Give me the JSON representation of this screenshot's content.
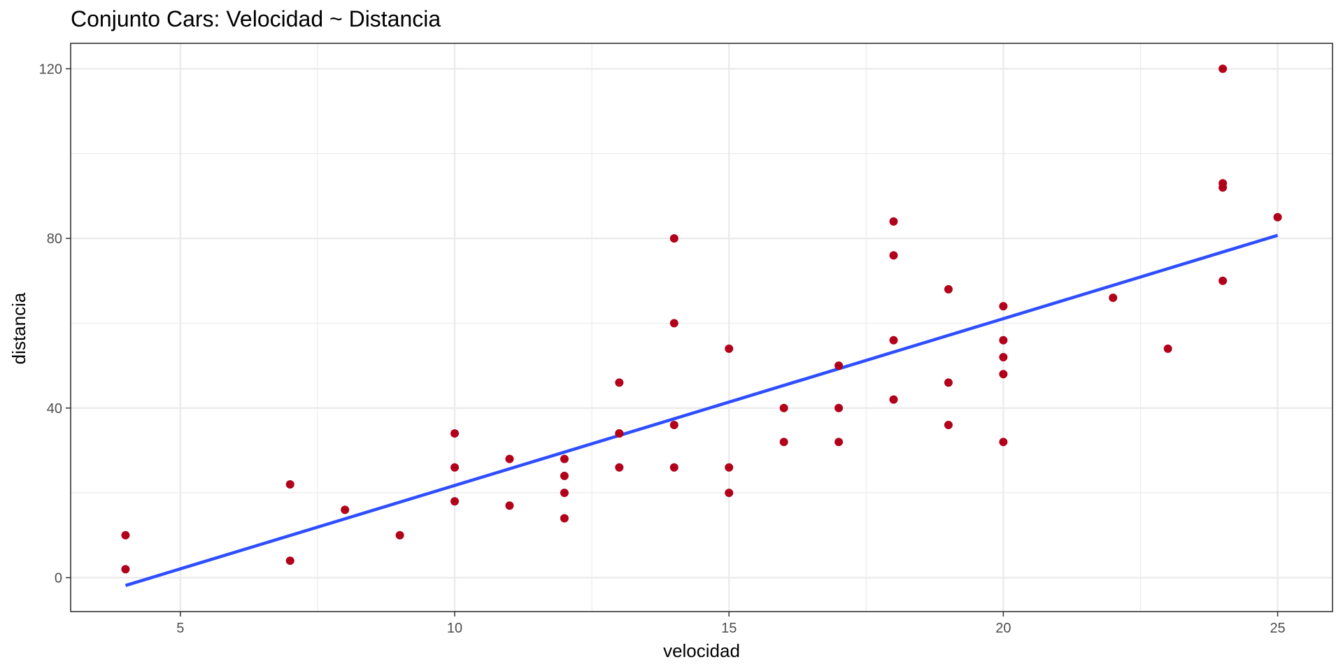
{
  "chart_data": {
    "type": "scatter",
    "title": "Conjunto Cars: Velocidad ~ Distancia",
    "xlabel": "velocidad",
    "ylabel": "distancia",
    "xlim": [
      3,
      26
    ],
    "ylim": [
      -8,
      126
    ],
    "x_ticks": [
      5,
      10,
      15,
      20,
      25
    ],
    "y_ticks": [
      0,
      40,
      80,
      120
    ],
    "x_tick_labels": [
      "5",
      "10",
      "15",
      "20",
      "25"
    ],
    "y_tick_labels": [
      "0",
      "40",
      "80",
      "120"
    ],
    "grid": true,
    "legend": "none",
    "point_color": "#B2001B",
    "line_color": "#2E4EFF",
    "series": [
      {
        "type": "scatter",
        "x": [
          4,
          4,
          7,
          7,
          8,
          9,
          10,
          10,
          10,
          11,
          11,
          12,
          12,
          12,
          12,
          13,
          13,
          13,
          13,
          14,
          14,
          14,
          14,
          15,
          15,
          15,
          16,
          16,
          17,
          17,
          17,
          18,
          18,
          18,
          18,
          19,
          19,
          19,
          20,
          20,
          20,
          20,
          20,
          22,
          23,
          24,
          24,
          24,
          24,
          25
        ],
        "y": [
          2,
          10,
          4,
          22,
          16,
          10,
          18,
          26,
          34,
          17,
          28,
          14,
          20,
          24,
          28,
          26,
          34,
          34,
          46,
          26,
          36,
          60,
          80,
          20,
          26,
          54,
          32,
          40,
          32,
          40,
          50,
          42,
          56,
          76,
          84,
          36,
          46,
          68,
          32,
          48,
          52,
          56,
          64,
          66,
          54,
          70,
          92,
          93,
          120,
          85
        ]
      },
      {
        "type": "line",
        "x": [
          4,
          25
        ],
        "y": [
          -1.85,
          80.73
        ]
      }
    ]
  }
}
